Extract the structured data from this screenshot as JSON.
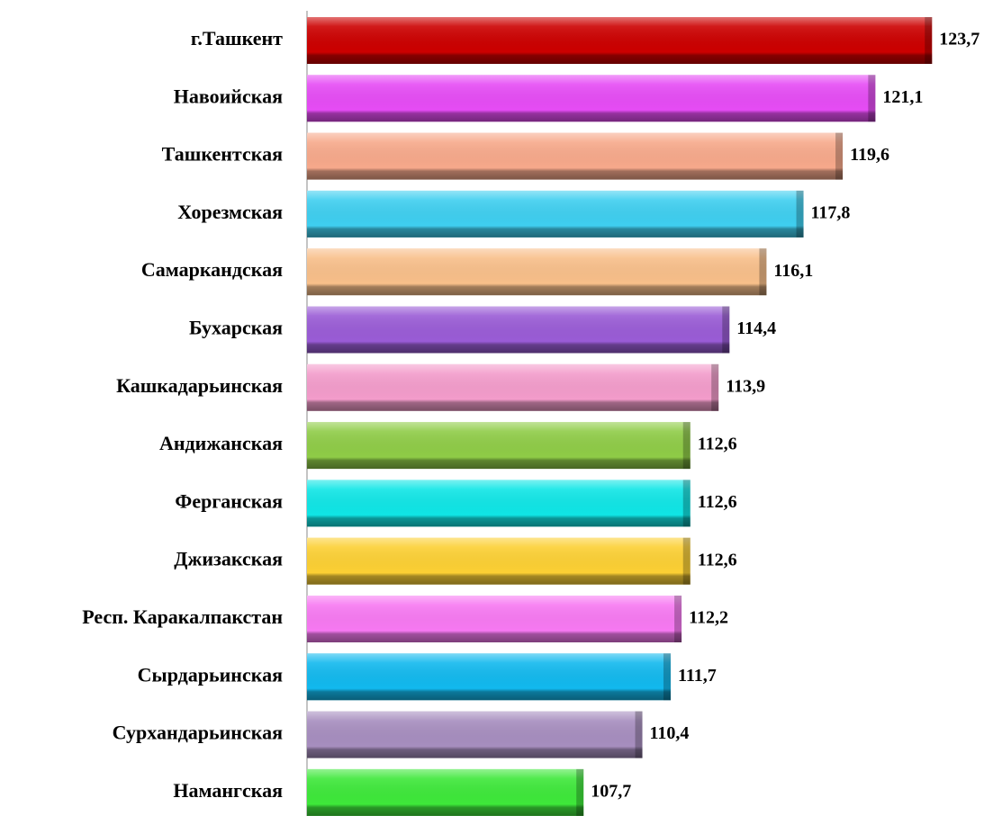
{
  "chart_data": {
    "type": "barh",
    "categories": [
      "г.Ташкент",
      "Навоийская",
      "Ташкентская",
      "Хорезмская",
      "Самаркандская",
      "Бухарская",
      "Кашкадарьинская",
      "Андижанская",
      "Ферганская",
      "Джизакская",
      "Респ. Каракалпакстан",
      "Сырдарьинская",
      "Сурхандарьинская",
      "Намангская"
    ],
    "values": [
      123.7,
      121.1,
      119.6,
      117.8,
      116.1,
      114.4,
      113.9,
      112.6,
      112.6,
      112.6,
      112.2,
      111.7,
      110.4,
      107.7
    ],
    "value_labels": [
      "123,7",
      "121,1",
      "119,6",
      "117,8",
      "116,1",
      "114,4",
      "113,9",
      "112,6",
      "112,6",
      "112,6",
      "112,2",
      "111,7",
      "110,4",
      "107,7"
    ],
    "colors": [
      "#cc0000",
      "#e64cf5",
      "#f7a98b",
      "#3fcff0",
      "#f8bf8a",
      "#9a5cd6",
      "#f39ccb",
      "#8fcc47",
      "#10e6e6",
      "#fcd034",
      "#f779f2",
      "#12b9ee",
      "#a78ebf",
      "#3ee83a"
    ],
    "xlim": [
      95,
      125
    ]
  }
}
